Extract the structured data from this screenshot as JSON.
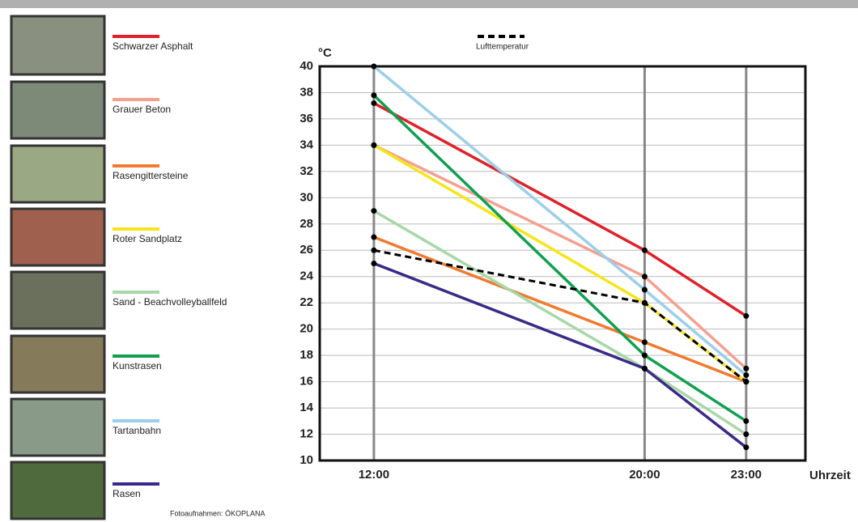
{
  "chart_data": {
    "type": "line",
    "y_label": "°C",
    "x_label": "Uhrzeit",
    "credit": "Fotoaufnahmen: ÖKOPLANA",
    "x": [
      12,
      20,
      23
    ],
    "xlim": [
      10.4,
      24.75
    ],
    "xticks": [
      {
        "value": 12,
        "label": "12:00"
      },
      {
        "value": 20,
        "label": "20:00"
      },
      {
        "value": 23,
        "label": "23:00"
      }
    ],
    "ylim": [
      10,
      40
    ],
    "yticks": [
      10,
      12,
      14,
      16,
      18,
      20,
      22,
      24,
      26,
      28,
      30,
      32,
      34,
      36,
      38,
      40
    ],
    "grid": true,
    "series": [
      {
        "name": "Schwarzer Asphalt",
        "color": "#e0202a",
        "values": [
          37.2,
          26,
          21
        ]
      },
      {
        "name": "Grauer Beton",
        "color": "#f4a090",
        "values": [
          34,
          24,
          17
        ]
      },
      {
        "name": "Rasengittersteine",
        "color": "#f07a30",
        "values": [
          27,
          19,
          16
        ]
      },
      {
        "name": "Roter Sandplatz",
        "color": "#f6e51a",
        "values": [
          34,
          22,
          16
        ]
      },
      {
        "name": "Sand - Beachvolleyballfeld",
        "color": "#a8d8a8",
        "values": [
          29,
          17,
          12
        ]
      },
      {
        "name": "Kunstrasen",
        "color": "#10a050",
        "values": [
          37.8,
          18,
          13
        ]
      },
      {
        "name": "Tartanbahn",
        "color": "#9ccfe8",
        "values": [
          40,
          23,
          16.5
        ]
      },
      {
        "name": "Rasen",
        "color": "#3a2a88",
        "values": [
          25,
          17,
          11
        ]
      },
      {
        "name": "Lufttemperatur",
        "color": "#000000",
        "dashed": true,
        "values": [
          26,
          22,
          16
        ]
      }
    ]
  }
}
